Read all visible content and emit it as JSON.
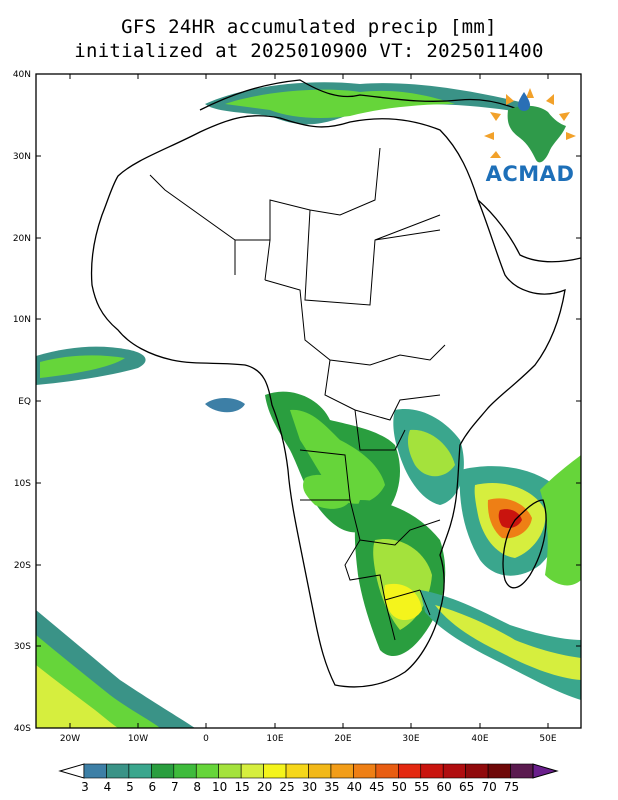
{
  "title": {
    "line1": "GFS 24HR accumulated precip [mm]",
    "line2": "initialized at 2025010900 VT: 2025011400"
  },
  "axes": {
    "lat_labels": [
      "40N",
      "30N",
      "20N",
      "10N",
      "EQ",
      "10S",
      "20S",
      "30S",
      "40S"
    ],
    "lon_labels": [
      "20W",
      "10W",
      "0",
      "10E",
      "20E",
      "30E",
      "40E",
      "50E"
    ]
  },
  "logo": {
    "text": "ACMAD"
  },
  "colorbar": {
    "labels": [
      "3",
      "4",
      "5",
      "6",
      "7",
      "8",
      "10",
      "15",
      "20",
      "25",
      "30",
      "35",
      "40",
      "45",
      "50",
      "55",
      "60",
      "65",
      "70",
      "75"
    ],
    "colors": [
      "#3d7fa6",
      "#3a9387",
      "#3aa68d",
      "#2a9e3f",
      "#3fbb3c",
      "#66d53a",
      "#a4e23c",
      "#d6ee3e",
      "#f4f41c",
      "#f6d71a",
      "#f2b818",
      "#f29d18",
      "#ee7f15",
      "#e85d12",
      "#e32810",
      "#c9140e",
      "#b00d0f",
      "#900a0c",
      "#6e0808",
      "#5a1a4f"
    ],
    "over_color": "#6a1f8c"
  },
  "colors": {
    "coast": "#000000",
    "frame": "#000000"
  }
}
